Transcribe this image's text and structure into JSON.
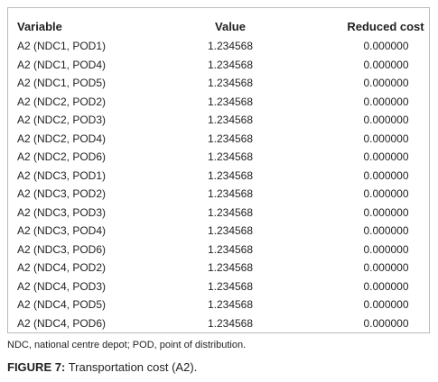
{
  "table": {
    "columns": [
      "Variable",
      "Value",
      "Reduced cost"
    ],
    "rows": [
      [
        "A2 (NDC1, POD1)",
        "1.234568",
        "0.000000"
      ],
      [
        "A2 (NDC1, POD4)",
        "1.234568",
        "0.000000"
      ],
      [
        "A2 (NDC1, POD5)",
        "1.234568",
        "0.000000"
      ],
      [
        "A2 (NDC2, POD2)",
        "1.234568",
        "0.000000"
      ],
      [
        "A2 (NDC2, POD3)",
        "1.234568",
        "0.000000"
      ],
      [
        "A2 (NDC2, POD4)",
        "1.234568",
        "0.000000"
      ],
      [
        "A2 (NDC2, POD6)",
        "1.234568",
        "0.000000"
      ],
      [
        "A2 (NDC3, POD1)",
        "1.234568",
        "0.000000"
      ],
      [
        "A2 (NDC3, POD2)",
        "1.234568",
        "0.000000"
      ],
      [
        "A2 (NDC3, POD3)",
        "1.234568",
        "0.000000"
      ],
      [
        "A2 (NDC3, POD4)",
        "1.234568",
        "0.000000"
      ],
      [
        "A2 (NDC3, POD6)",
        "1.234568",
        "0.000000"
      ],
      [
        "A2 (NDC4, POD2)",
        "1.234568",
        "0.000000"
      ],
      [
        "A2 (NDC4, POD3)",
        "1.234568",
        "0.000000"
      ],
      [
        "A2 (NDC4, POD5)",
        "1.234568",
        "0.000000"
      ],
      [
        "A2 (NDC4, POD6)",
        "1.234568",
        "0.000000"
      ]
    ]
  },
  "footnote": "NDC, national centre depot; POD, point of distribution.",
  "caption": {
    "label": "FIGURE 7:",
    "text": "Transportation cost (A2)."
  }
}
